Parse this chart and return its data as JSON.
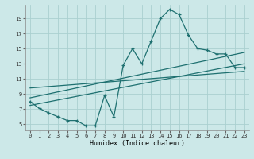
{
  "xlabel": "Humidex (Indice chaleur)",
  "background_color": "#cce8e8",
  "grid_color": "#aad0d0",
  "line_color": "#1e7070",
  "xlim": [
    -0.5,
    23.5
  ],
  "ylim": [
    4.2,
    20.8
  ],
  "xticks": [
    0,
    1,
    2,
    3,
    4,
    5,
    6,
    7,
    8,
    9,
    10,
    11,
    12,
    13,
    14,
    15,
    16,
    17,
    18,
    19,
    20,
    21,
    22,
    23
  ],
  "yticks": [
    5,
    7,
    9,
    11,
    13,
    15,
    17,
    19
  ],
  "main_x": [
    0,
    1,
    2,
    3,
    4,
    5,
    6,
    7,
    8,
    9,
    10,
    11,
    12,
    13,
    14,
    15,
    16,
    17,
    18,
    19,
    20,
    21,
    22,
    23
  ],
  "main_y": [
    8.0,
    7.1,
    6.5,
    6.0,
    5.5,
    5.5,
    4.8,
    4.8,
    8.8,
    6.0,
    12.8,
    15.0,
    13.0,
    16.0,
    19.0,
    20.2,
    19.5,
    16.8,
    15.0,
    14.8,
    14.3,
    14.3,
    12.5,
    12.5
  ],
  "straight_lines": [
    {
      "x": [
        0,
        23
      ],
      "y": [
        7.5,
        13.0
      ]
    },
    {
      "x": [
        0,
        23
      ],
      "y": [
        8.5,
        14.5
      ]
    },
    {
      "x": [
        0,
        23
      ],
      "y": [
        9.8,
        12.0
      ]
    }
  ]
}
